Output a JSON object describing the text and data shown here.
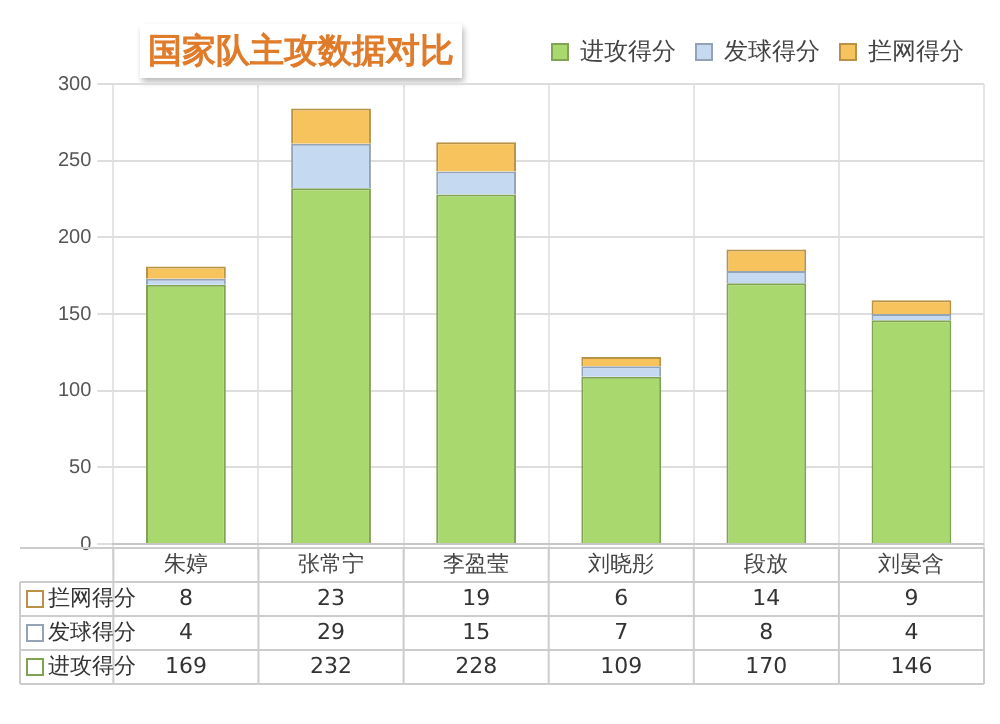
{
  "chart_data": {
    "type": "bar",
    "title": "国家队主攻数据对比",
    "stacked": true,
    "categories": [
      "朱婷",
      "张常宁",
      "李盈莹",
      "刘晓彤",
      "段放",
      "刘晏含"
    ],
    "series": [
      {
        "name": "进攻得分",
        "color": "#a9d86e",
        "values": [
          169,
          232,
          228,
          109,
          170,
          146
        ]
      },
      {
        "name": "发球得分",
        "color": "#c5d9f1",
        "values": [
          4,
          29,
          15,
          7,
          8,
          4
        ]
      },
      {
        "name": "拦网得分",
        "color": "#f6c35d",
        "values": [
          8,
          23,
          19,
          6,
          14,
          9
        ]
      }
    ],
    "ylim": [
      0,
      300
    ],
    "yticks": [
      0,
      50,
      100,
      150,
      200,
      250,
      300
    ],
    "grid": true,
    "legend": "top right",
    "data_labels": true
  }
}
